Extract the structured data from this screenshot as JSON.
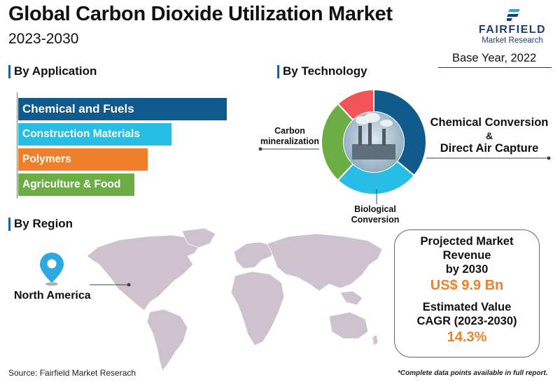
{
  "header": {
    "title": "Global Carbon Dioxide Utilization Market",
    "subtitle": "2023-2030",
    "base_year": "Base Year, 2022"
  },
  "logo": {
    "name": "FAIRFIELD",
    "tagline": "Market Research"
  },
  "sections": {
    "application": "By Application",
    "technology": "By Technology",
    "region": "By Region"
  },
  "chart_data": [
    {
      "type": "bar",
      "orientation": "horizontal",
      "title": "By Application",
      "categories": [
        "Chemical and Fuels",
        "Construction Materials",
        "Polymers",
        "Agriculture & Food"
      ],
      "values": [
        4.5,
        3.3,
        2.8,
        2.5
      ],
      "colors": [
        "#105a8c",
        "#27bde4",
        "#f07f2c",
        "#6cae45"
      ]
    },
    {
      "type": "pie",
      "donut": true,
      "title": "By Technology",
      "categories": [
        "Chemical Conversion & Direct Air Capture",
        "Biological Conversion",
        "Carbon mineralization",
        ""
      ],
      "values": [
        36,
        26,
        26,
        12
      ],
      "colors": [
        "#105a8c",
        "#27bde4",
        "#6cae45",
        "#f25558"
      ],
      "labels": {
        "chem_line1": "Chemical Conversion",
        "chem_line2": "&",
        "chem_line3": "Direct Air Capture",
        "bio_line1": "Biological",
        "bio_line2": "Conversion",
        "carbon_line1": "Carbon",
        "carbon_line2": "mineralization"
      }
    }
  ],
  "region": {
    "highlight": "North America",
    "map_color": "#cfc2cf",
    "pin_color": "#2da8e0"
  },
  "projection": {
    "line1": "Projected Market",
    "line2": "Revenue",
    "line3": "by 2030",
    "revenue": "US$ 9.9 Bn",
    "line4": "Estimated Value",
    "line5": "CAGR (2023-2030)",
    "cagr": "14.3%"
  },
  "footer": {
    "source": "Source: Fairfield Market Reserach",
    "note": "*Complete data points available in full report."
  }
}
